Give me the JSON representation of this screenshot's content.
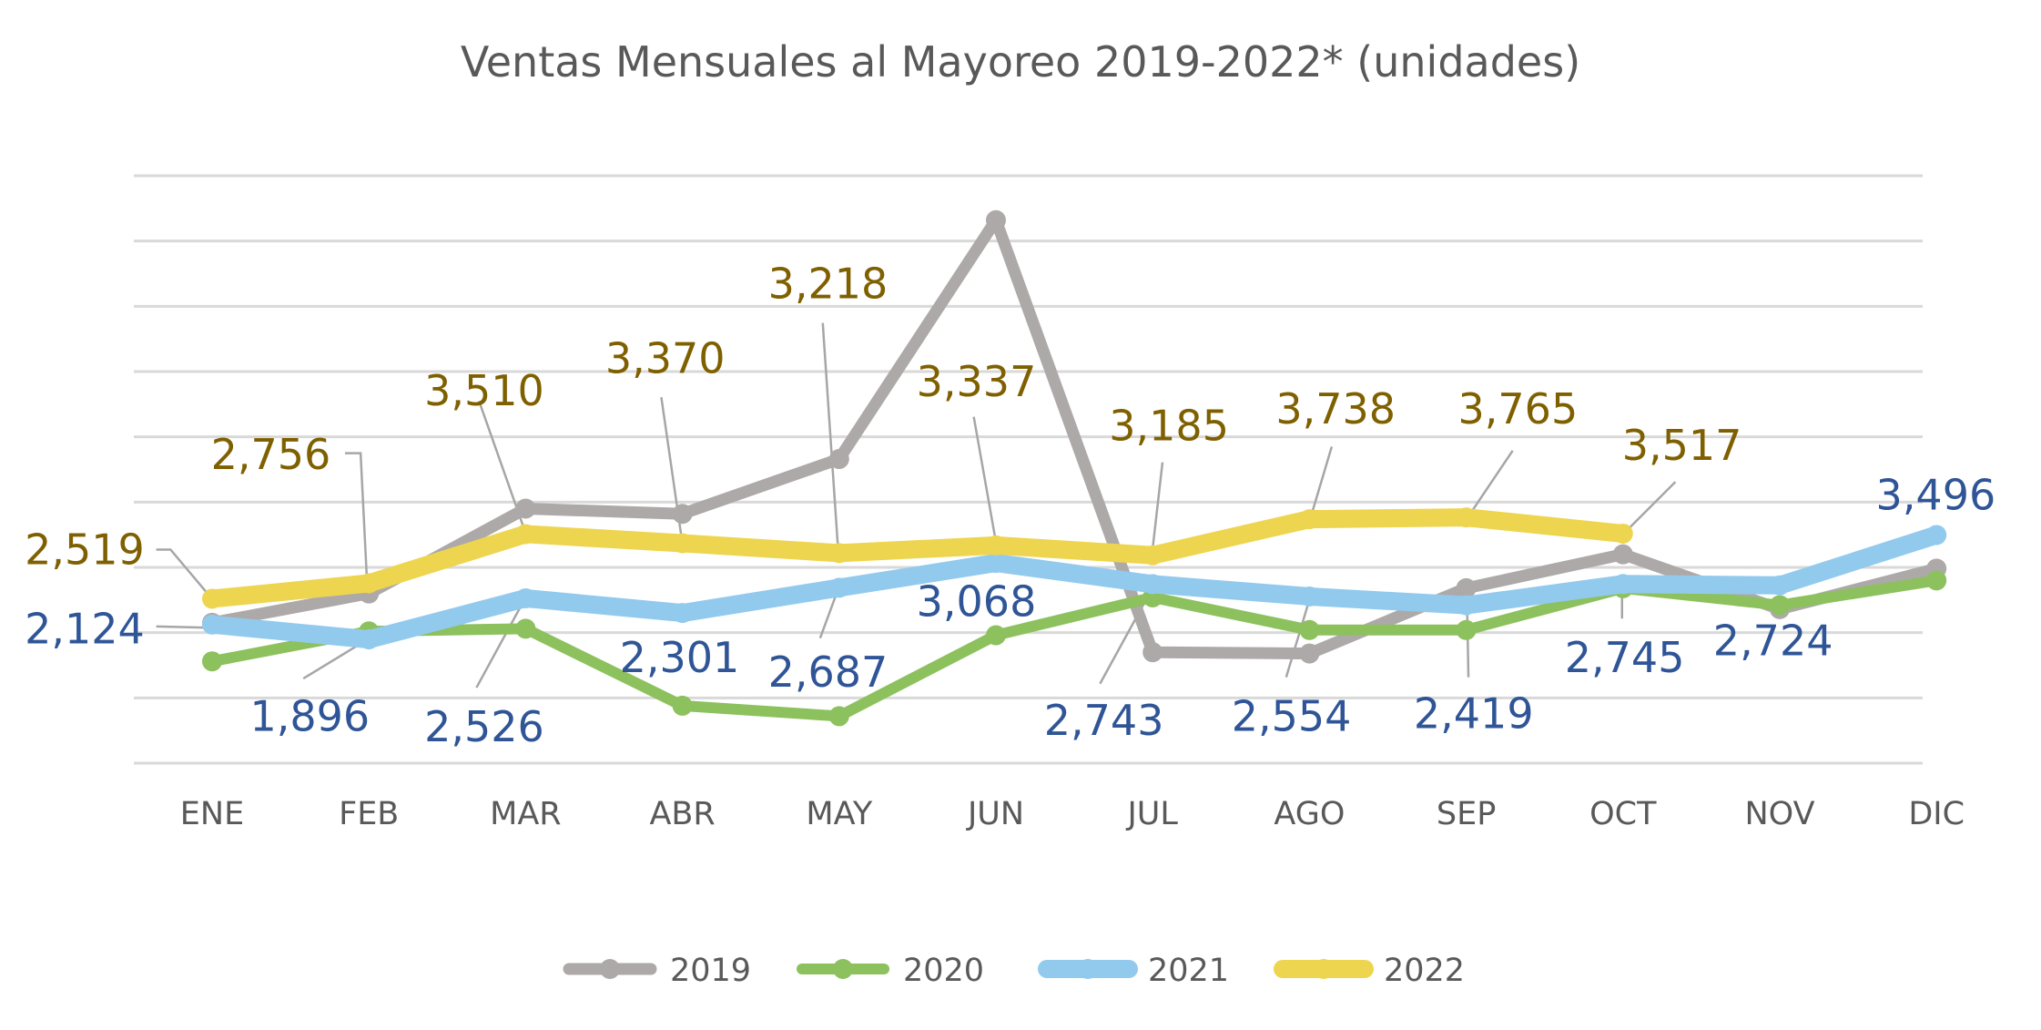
{
  "chart_data": {
    "type": "line",
    "title": "Ventas Mensuales al Mayoreo 2019-2022* (unidades)",
    "xlabel": "",
    "ylabel": "",
    "categories": [
      "ENE",
      "FEB",
      "MAR",
      "ABR",
      "MAY",
      "JUN",
      "JUL",
      "AGO",
      "SEP",
      "OCT",
      "NOV",
      "DIC"
    ],
    "ylim": [
      0,
      9000
    ],
    "y_tick_labels_shown": false,
    "grid": true,
    "legend": "bottom",
    "series": [
      {
        "name": "2019",
        "color": "#ADA9A8",
        "labels_shown": false,
        "values": [
          2150,
          2600,
          3900,
          3820,
          4660,
          8320,
          1700,
          1680,
          2680,
          3200,
          2360,
          2980
        ]
      },
      {
        "name": "2020",
        "color": "#8CC15E",
        "labels_shown": false,
        "values": [
          1560,
          2020,
          2060,
          880,
          720,
          1960,
          2540,
          2040,
          2040,
          2680,
          2420,
          2800
        ]
      },
      {
        "name": "2021",
        "color": "#92CAEE",
        "label_color": "#2F5597",
        "labels_shown": true,
        "values": [
          2124,
          1896,
          2526,
          2301,
          2687,
          3068,
          2743,
          2554,
          2419,
          2745,
          2724,
          3496
        ],
        "data_labels": [
          "2,124",
          "1,896",
          "2,526",
          "2,301",
          "2,687",
          "3,068",
          "2,743",
          "2,554",
          "2,419",
          "2,745",
          "2,724",
          "3,496"
        ]
      },
      {
        "name": "2022",
        "color": "#EED54F",
        "label_color": "#7F6000",
        "labels_shown": true,
        "values": [
          2519,
          2756,
          3510,
          3370,
          3218,
          3337,
          3185,
          3738,
          3765,
          3517,
          null,
          null
        ],
        "data_labels": [
          "2,519",
          "2,756",
          "3,510",
          "3,370",
          "3,218",
          "3,337",
          "3,185",
          "3,738",
          "3,765",
          "3,517"
        ]
      }
    ]
  }
}
